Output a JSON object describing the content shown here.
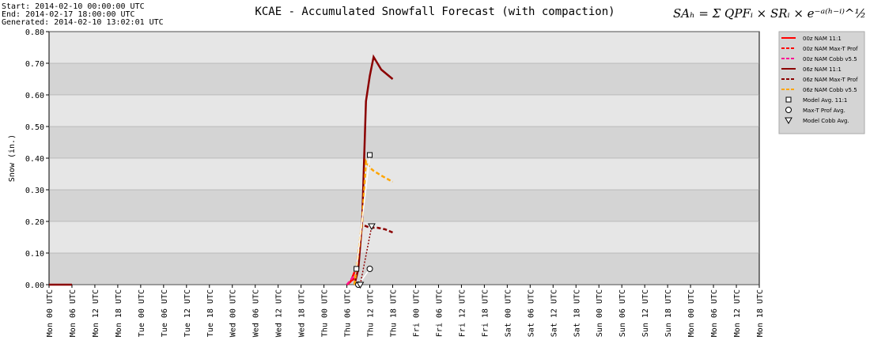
{
  "chart_data": {
    "type": "line",
    "header_lines": [
      "Start: 2014-02-10 00:00:00 UTC",
      "End: 2014-02-17 18:00:00 UTC",
      "Generated: 2014-02-10 13:02:01 UTC"
    ],
    "title": "KCAE - Accumulated Snowfall Forecast (with compaction)",
    "formula": "SAₕ = Σ QPFᵢ × SRᵢ × e⁻ᵃ⁽ʰ⁻ⁱ⁾^½",
    "ylabel": "Snow (in.)",
    "xlim": [
      0,
      186
    ],
    "xticks": [
      {
        "value": 0,
        "label": "Mon 00 UTC"
      },
      {
        "value": 6,
        "label": "Mon 06 UTC"
      },
      {
        "value": 12,
        "label": "Mon 12 UTC"
      },
      {
        "value": 18,
        "label": "Mon 18 UTC"
      },
      {
        "value": 24,
        "label": "Tue 00 UTC"
      },
      {
        "value": 30,
        "label": "Tue 06 UTC"
      },
      {
        "value": 36,
        "label": "Tue 12 UTC"
      },
      {
        "value": 42,
        "label": "Tue 18 UTC"
      },
      {
        "value": 48,
        "label": "Wed 00 UTC"
      },
      {
        "value": 54,
        "label": "Wed 06 UTC"
      },
      {
        "value": 60,
        "label": "Wed 12 UTC"
      },
      {
        "value": 66,
        "label": "Wed 18 UTC"
      },
      {
        "value": 72,
        "label": "Thu 00 UTC"
      },
      {
        "value": 78,
        "label": "Thu 06 UTC"
      },
      {
        "value": 84,
        "label": "Thu 12 UTC"
      },
      {
        "value": 90,
        "label": "Thu 18 UTC"
      },
      {
        "value": 96,
        "label": "Fri 00 UTC"
      },
      {
        "value": 102,
        "label": "Fri 06 UTC"
      },
      {
        "value": 108,
        "label": "Fri 12 UTC"
      },
      {
        "value": 114,
        "label": "Fri 18 UTC"
      },
      {
        "value": 120,
        "label": "Sat 00 UTC"
      },
      {
        "value": 126,
        "label": "Sat 06 UTC"
      },
      {
        "value": 132,
        "label": "Sat 12 UTC"
      },
      {
        "value": 138,
        "label": "Sat 18 UTC"
      },
      {
        "value": 144,
        "label": "Sun 00 UTC"
      },
      {
        "value": 150,
        "label": "Sun 06 UTC"
      },
      {
        "value": 156,
        "label": "Sun 12 UTC"
      },
      {
        "value": 162,
        "label": "Sun 18 UTC"
      },
      {
        "value": 168,
        "label": "Mon 00 UTC"
      },
      {
        "value": 174,
        "label": "Mon 06 UTC"
      },
      {
        "value": 180,
        "label": "Mon 12 UTC"
      },
      {
        "value": 186,
        "label": "Mon 18 UTC"
      }
    ],
    "ylim": [
      0,
      0.8
    ],
    "yticks": [
      {
        "value": 0,
        "label": "0.00"
      },
      {
        "value": 0.1,
        "label": "0.10"
      },
      {
        "value": 0.2,
        "label": "0.20"
      },
      {
        "value": 0.3,
        "label": "0.30"
      },
      {
        "value": 0.4,
        "label": "0.40"
      },
      {
        "value": 0.5,
        "label": "0.50"
      },
      {
        "value": 0.6,
        "label": "0.60"
      },
      {
        "value": 0.7,
        "label": "0.70"
      },
      {
        "value": 0.8,
        "label": "0.80"
      }
    ],
    "series": [
      {
        "name": "00z NAM 11:1",
        "color": "#ff0000",
        "dash": false,
        "x": [
          78,
          79,
          80
        ],
        "values": [
          0,
          0.01,
          0.04
        ]
      },
      {
        "name": "00z NAM Max-T Prof",
        "color": "#ff0000",
        "dash": true,
        "x": [
          78,
          80
        ],
        "values": [
          0,
          0.02
        ]
      },
      {
        "name": "00z NAM Cobb v5.5",
        "color": "#ff1493",
        "dash": true,
        "x": [
          78,
          80
        ],
        "values": [
          0,
          0.03
        ]
      },
      {
        "name": "06z NAM 11:1",
        "color": "#8b0000",
        "dash": false,
        "x": [
          0,
          6,
          7,
          80,
          81,
          82,
          83,
          84,
          85,
          86,
          87,
          88,
          89,
          90
        ],
        "values": [
          0,
          0,
          null,
          0,
          0.05,
          0.2,
          0.58,
          0.66,
          0.72,
          0.7,
          0.68,
          0.67,
          0.66,
          0.65
        ]
      },
      {
        "name": "06z NAM Max-T Prof",
        "color": "#8b0000",
        "dash": true,
        "x": [
          80,
          82,
          84,
          86,
          88,
          90
        ],
        "values": [
          0,
          0.19,
          0.18,
          0.18,
          0.175,
          0.165
        ]
      },
      {
        "name": "06z NAM Cobb v5.5",
        "color": "#ffa500",
        "dash": true,
        "x": [
          80,
          82,
          83,
          84,
          85,
          87,
          90
        ],
        "values": [
          0,
          0.2,
          0.39,
          0.37,
          0.36,
          0.345,
          0.325
        ]
      },
      {
        "name": "Model Avg. 11:1",
        "color": "#ffffff",
        "marker": "square",
        "x": [
          80.5,
          84
        ],
        "values": [
          0.05,
          0.41
        ]
      },
      {
        "name": "Max-T Prof Avg.",
        "color": "#ffffff",
        "marker": "circle",
        "x": [
          81,
          84
        ],
        "values": [
          0,
          0.05
        ]
      },
      {
        "name": "Model Cobb Avg.",
        "color": "#8b0000",
        "marker": "triangle",
        "x": [
          81.5,
          84.5
        ],
        "values": [
          0,
          0.185
        ]
      }
    ]
  }
}
